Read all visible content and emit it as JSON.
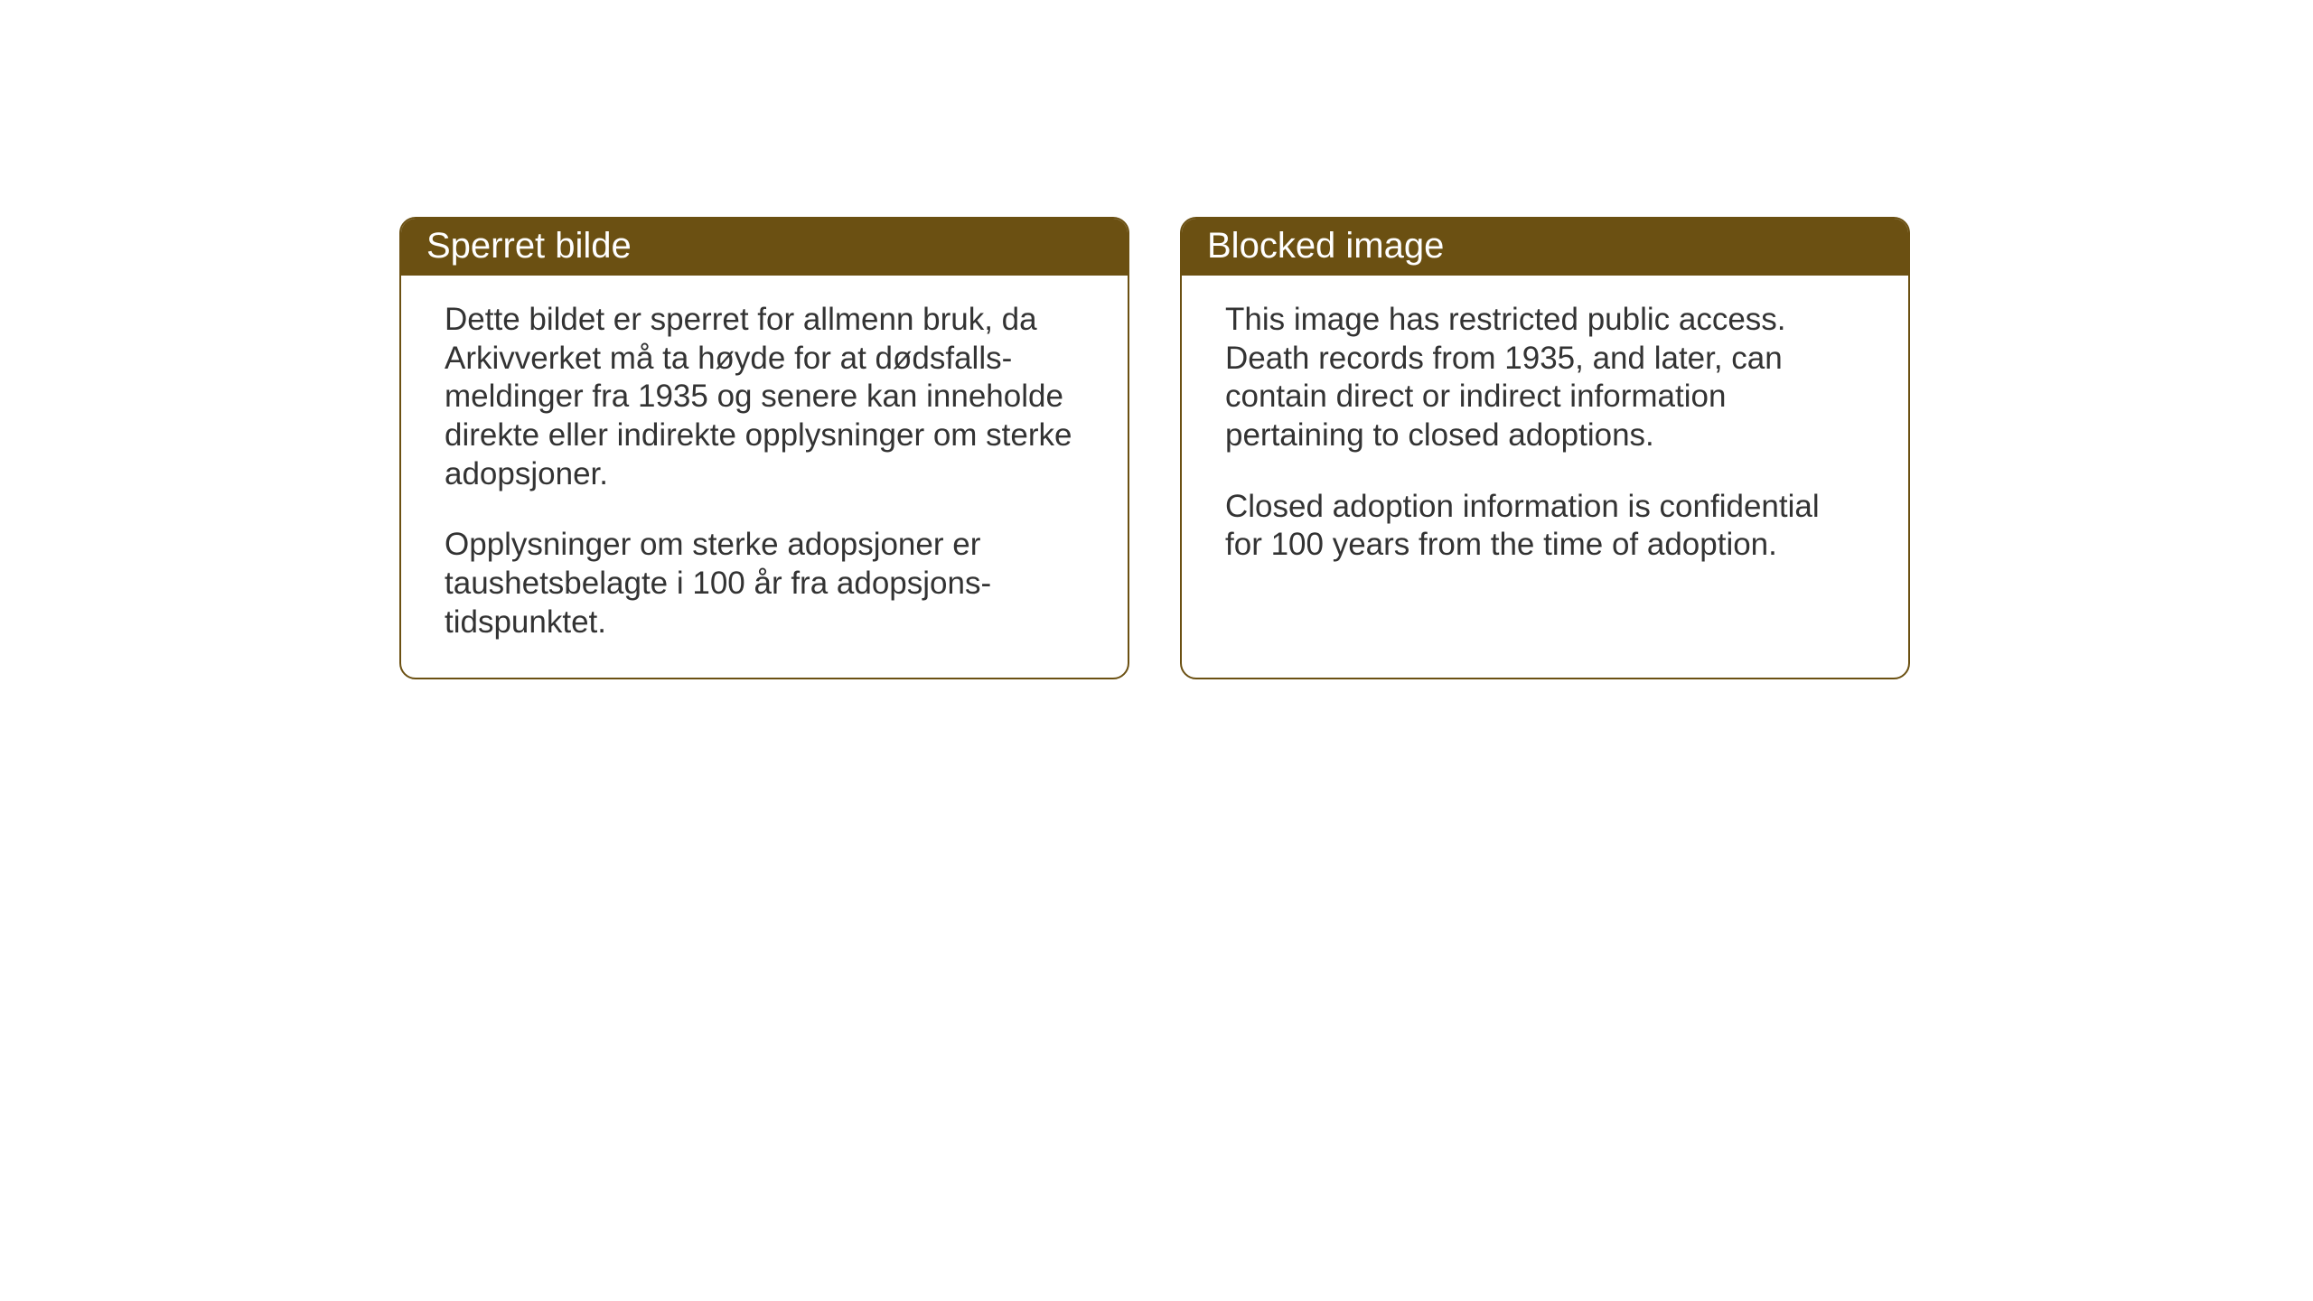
{
  "layout": {
    "background_color": "#ffffff",
    "card_border_color": "#6b5012",
    "card_border_radius": 18,
    "header_bg_color": "#6b5012",
    "header_text_color": "#ffffff",
    "body_text_color": "#333333",
    "header_fontsize": 40,
    "body_fontsize": 35
  },
  "cards": {
    "norwegian": {
      "title": "Sperret bilde",
      "paragraph1": "Dette bildet er sperret for allmenn bruk, da Arkivverket må ta høyde for at dødsfalls-meldinger fra 1935 og senere kan inneholde direkte eller indirekte opplysninger om sterke adopsjoner.",
      "paragraph2": "Opplysninger om sterke adopsjoner er taushetsbelagte i 100 år fra adopsjons-tidspunktet."
    },
    "english": {
      "title": "Blocked image",
      "paragraph1": "This image has restricted public access. Death records from 1935, and later, can contain direct or indirect information pertaining to closed adoptions.",
      "paragraph2": "Closed adoption information is confidential for 100 years from the time of adoption."
    }
  }
}
